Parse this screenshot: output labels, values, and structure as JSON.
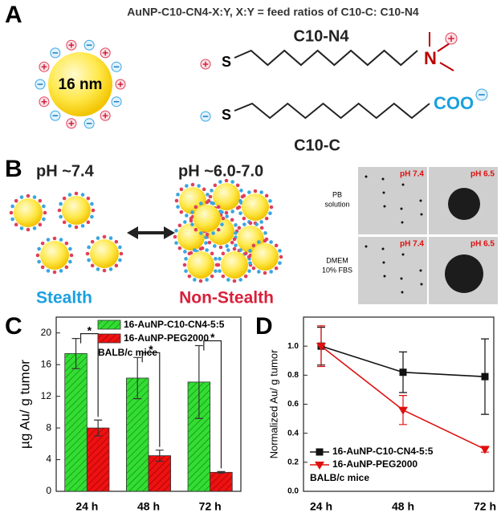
{
  "panel_labels": [
    "A",
    "B",
    "C",
    "D"
  ],
  "panel_a": {
    "title": "AuNP-C10-CN4-X:Y, X:Y = feed ratios of C10-C: C10-N4",
    "particle_size": "16 nm",
    "ligands": [
      {
        "name": "C10-N4",
        "anchor": "S",
        "head": "N"
      },
      {
        "name": "C10-C",
        "anchor": "S",
        "head": "COO"
      }
    ]
  },
  "panel_b": {
    "states": [
      {
        "ph": "pH ~7.4",
        "label": "Stealth"
      },
      {
        "ph": "pH ~6.0-7.0",
        "label": "Non-Stealth"
      }
    ],
    "micrographs": {
      "rows": [
        [
          "PB",
          "solution"
        ],
        [
          "DMEM",
          "10% FBS"
        ]
      ],
      "panels": [
        [
          "pH 7.4",
          "pH 6.5"
        ],
        [
          "pH 7.4",
          "pH 6.5"
        ]
      ]
    }
  },
  "chart_data": [
    {
      "type": "bar",
      "ylabel": "µg Au/ g tumor",
      "categories": [
        "24 h",
        "48 h",
        "72 h"
      ],
      "series": [
        {
          "name": "16-AuNP-C10-CN4-5:5",
          "color": "#22cc22",
          "values": [
            17.4,
            14.3,
            13.8
          ],
          "errors": [
            1.9,
            2.6,
            4.6
          ]
        },
        {
          "name": "16-AuNP-PEG2000",
          "color": "#dd1111",
          "values": [
            8.0,
            4.5,
            2.4
          ],
          "errors": [
            1.0,
            0.7,
            0.1
          ]
        }
      ],
      "ylim": [
        0,
        22
      ],
      "yticks": [
        0,
        4,
        8,
        12,
        16,
        20
      ],
      "annotation": "BALB/c mice",
      "significance": [
        "*",
        "*",
        "*"
      ]
    },
    {
      "type": "line",
      "ylabel": "Normalized Au/ g tumor",
      "categories": [
        "24 h",
        "48 h",
        "72 h"
      ],
      "series": [
        {
          "name": "16-AuNP-C10-CN4-5:5",
          "color": "#111111",
          "marker": "square",
          "values": [
            1.0,
            0.82,
            0.79
          ],
          "errors": [
            0.13,
            0.14,
            0.26
          ]
        },
        {
          "name": "16-AuNP-PEG2000",
          "color": "#e01010",
          "marker": "triangle-down",
          "values": [
            1.0,
            0.56,
            0.29
          ],
          "errors": [
            0.14,
            0.1,
            0.02
          ]
        }
      ],
      "ylim": [
        0,
        1.2
      ],
      "yticks": [
        {
          "value": 0,
          "label": "0.0"
        },
        0.2,
        0.4,
        0.6,
        0.8,
        {
          "value": 1,
          "label": "1.0"
        }
      ],
      "annotation": "BALB/c mice"
    }
  ]
}
